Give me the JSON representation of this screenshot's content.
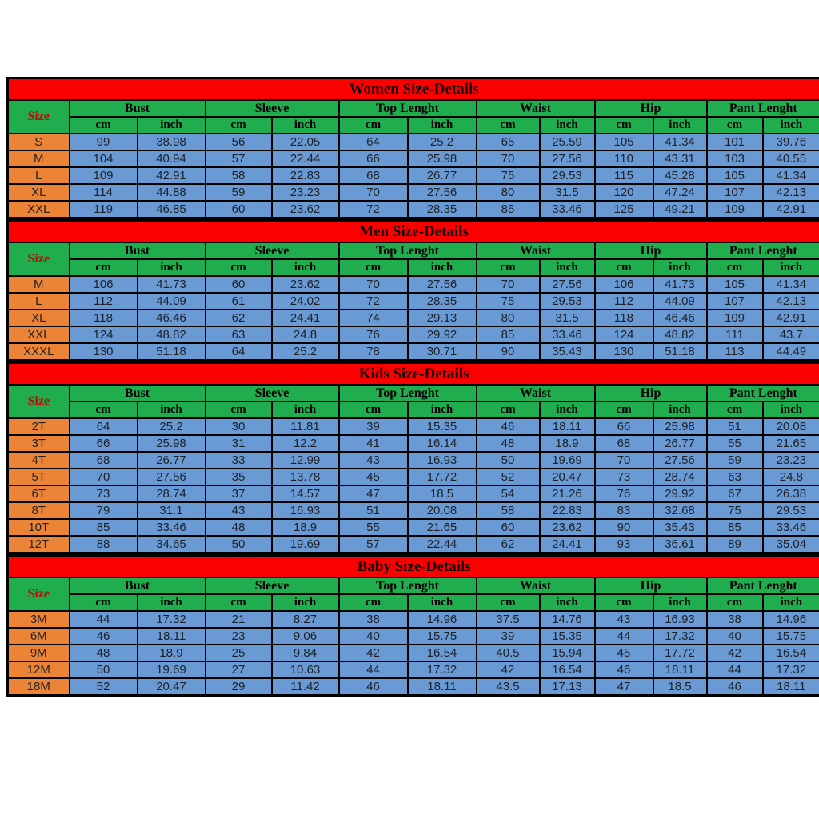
{
  "colors": {
    "section_bar_red": "#FB0000",
    "header_green": "#1FAD4E",
    "size_column_orange": "#EC8438",
    "data_cell_blue": "#699AD3",
    "size_label_red": "#D40000",
    "grid_black": "#000000"
  },
  "chart_data": [
    {
      "type": "table",
      "title": "Women Size-Details",
      "corner_label": "Size",
      "column_groups": [
        "Bust",
        "Sleeve",
        "Top Lenght",
        "Waist",
        "Hip",
        "Pant Lenght"
      ],
      "unit_headers": [
        "cm",
        "inch"
      ],
      "rows": [
        {
          "size": "S",
          "values": [
            "99",
            "38.98",
            "56",
            "22.05",
            "64",
            "25.2",
            "65",
            "25.59",
            "105",
            "41.34",
            "101",
            "39.76"
          ]
        },
        {
          "size": "M",
          "values": [
            "104",
            "40.94",
            "57",
            "22.44",
            "66",
            "25.98",
            "70",
            "27.56",
            "110",
            "43.31",
            "103",
            "40.55"
          ]
        },
        {
          "size": "L",
          "values": [
            "109",
            "42.91",
            "58",
            "22.83",
            "68",
            "26.77",
            "75",
            "29.53",
            "115",
            "45.28",
            "105",
            "41.34"
          ]
        },
        {
          "size": "XL",
          "values": [
            "114",
            "44.88",
            "59",
            "23.23",
            "70",
            "27.56",
            "80",
            "31.5",
            "120",
            "47.24",
            "107",
            "42.13"
          ]
        },
        {
          "size": "XXL",
          "values": [
            "119",
            "46.85",
            "60",
            "23.62",
            "72",
            "28.35",
            "85",
            "33.46",
            "125",
            "49.21",
            "109",
            "42.91"
          ]
        }
      ]
    },
    {
      "type": "table",
      "title": "Men Size-Details",
      "corner_label": "Size",
      "column_groups": [
        "Bust",
        "Sleeve",
        "Top Lenght",
        "Waist",
        "Hip",
        "Pant Lenght"
      ],
      "unit_headers": [
        "cm",
        "inch"
      ],
      "rows": [
        {
          "size": "M",
          "values": [
            "106",
            "41.73",
            "60",
            "23.62",
            "70",
            "27.56",
            "70",
            "27.56",
            "106",
            "41.73",
            "105",
            "41.34"
          ]
        },
        {
          "size": "L",
          "values": [
            "112",
            "44.09",
            "61",
            "24.02",
            "72",
            "28.35",
            "75",
            "29.53",
            "112",
            "44.09",
            "107",
            "42.13"
          ]
        },
        {
          "size": "XL",
          "values": [
            "118",
            "46.46",
            "62",
            "24.41",
            "74",
            "29.13",
            "80",
            "31.5",
            "118",
            "46.46",
            "109",
            "42.91"
          ]
        },
        {
          "size": "XXL",
          "values": [
            "124",
            "48.82",
            "63",
            "24.8",
            "76",
            "29.92",
            "85",
            "33.46",
            "124",
            "48.82",
            "111",
            "43.7"
          ]
        },
        {
          "size": "XXXL",
          "values": [
            "130",
            "51.18",
            "64",
            "25.2",
            "78",
            "30.71",
            "90",
            "35.43",
            "130",
            "51.18",
            "113",
            "44.49"
          ]
        }
      ]
    },
    {
      "type": "table",
      "title": "Kids Size-Details",
      "corner_label": "Size",
      "column_groups": [
        "Bust",
        "Sleeve",
        "Top Lenght",
        "Waist",
        "Hip",
        "Pant Lenght"
      ],
      "unit_headers": [
        "cm",
        "inch"
      ],
      "rows": [
        {
          "size": "2T",
          "values": [
            "64",
            "25.2",
            "30",
            "11.81",
            "39",
            "15.35",
            "46",
            "18.11",
            "66",
            "25.98",
            "51",
            "20.08"
          ]
        },
        {
          "size": "3T",
          "values": [
            "66",
            "25.98",
            "31",
            "12.2",
            "41",
            "16.14",
            "48",
            "18.9",
            "68",
            "26.77",
            "55",
            "21.65"
          ]
        },
        {
          "size": "4T",
          "values": [
            "68",
            "26.77",
            "33",
            "12.99",
            "43",
            "16.93",
            "50",
            "19.69",
            "70",
            "27.56",
            "59",
            "23.23"
          ]
        },
        {
          "size": "5T",
          "values": [
            "70",
            "27.56",
            "35",
            "13.78",
            "45",
            "17.72",
            "52",
            "20.47",
            "73",
            "28.74",
            "63",
            "24.8"
          ]
        },
        {
          "size": "6T",
          "values": [
            "73",
            "28.74",
            "37",
            "14.57",
            "47",
            "18.5",
            "54",
            "21.26",
            "76",
            "29.92",
            "67",
            "26.38"
          ]
        },
        {
          "size": "8T",
          "values": [
            "79",
            "31.1",
            "43",
            "16.93",
            "51",
            "20.08",
            "58",
            "22.83",
            "83",
            "32.68",
            "75",
            "29.53"
          ]
        },
        {
          "size": "10T",
          "values": [
            "85",
            "33.46",
            "48",
            "18.9",
            "55",
            "21.65",
            "60",
            "23.62",
            "90",
            "35.43",
            "85",
            "33.46"
          ]
        },
        {
          "size": "12T",
          "values": [
            "88",
            "34.65",
            "50",
            "19.69",
            "57",
            "22.44",
            "62",
            "24.41",
            "93",
            "36.61",
            "89",
            "35.04"
          ]
        }
      ]
    },
    {
      "type": "table",
      "title": "Baby Size-Details",
      "corner_label": "Size",
      "column_groups": [
        "Bust",
        "Sleeve",
        "Top Lenght",
        "Waist",
        "Hip",
        "Pant Lenght"
      ],
      "unit_headers": [
        "cm",
        "inch"
      ],
      "rows": [
        {
          "size": "3M",
          "values": [
            "44",
            "17.32",
            "21",
            "8.27",
            "38",
            "14.96",
            "37.5",
            "14.76",
            "43",
            "16.93",
            "38",
            "14.96"
          ]
        },
        {
          "size": "6M",
          "values": [
            "46",
            "18.11",
            "23",
            "9.06",
            "40",
            "15.75",
            "39",
            "15.35",
            "44",
            "17.32",
            "40",
            "15.75"
          ]
        },
        {
          "size": "9M",
          "values": [
            "48",
            "18.9",
            "25",
            "9.84",
            "42",
            "16.54",
            "40.5",
            "15.94",
            "45",
            "17.72",
            "42",
            "16.54"
          ]
        },
        {
          "size": "12M",
          "values": [
            "50",
            "19.69",
            "27",
            "10.63",
            "44",
            "17.32",
            "42",
            "16.54",
            "46",
            "18.11",
            "44",
            "17.32"
          ]
        },
        {
          "size": "18M",
          "values": [
            "52",
            "20.47",
            "29",
            "11.42",
            "46",
            "18.11",
            "43.5",
            "17.13",
            "47",
            "18.5",
            "46",
            "18.11"
          ]
        }
      ]
    }
  ]
}
